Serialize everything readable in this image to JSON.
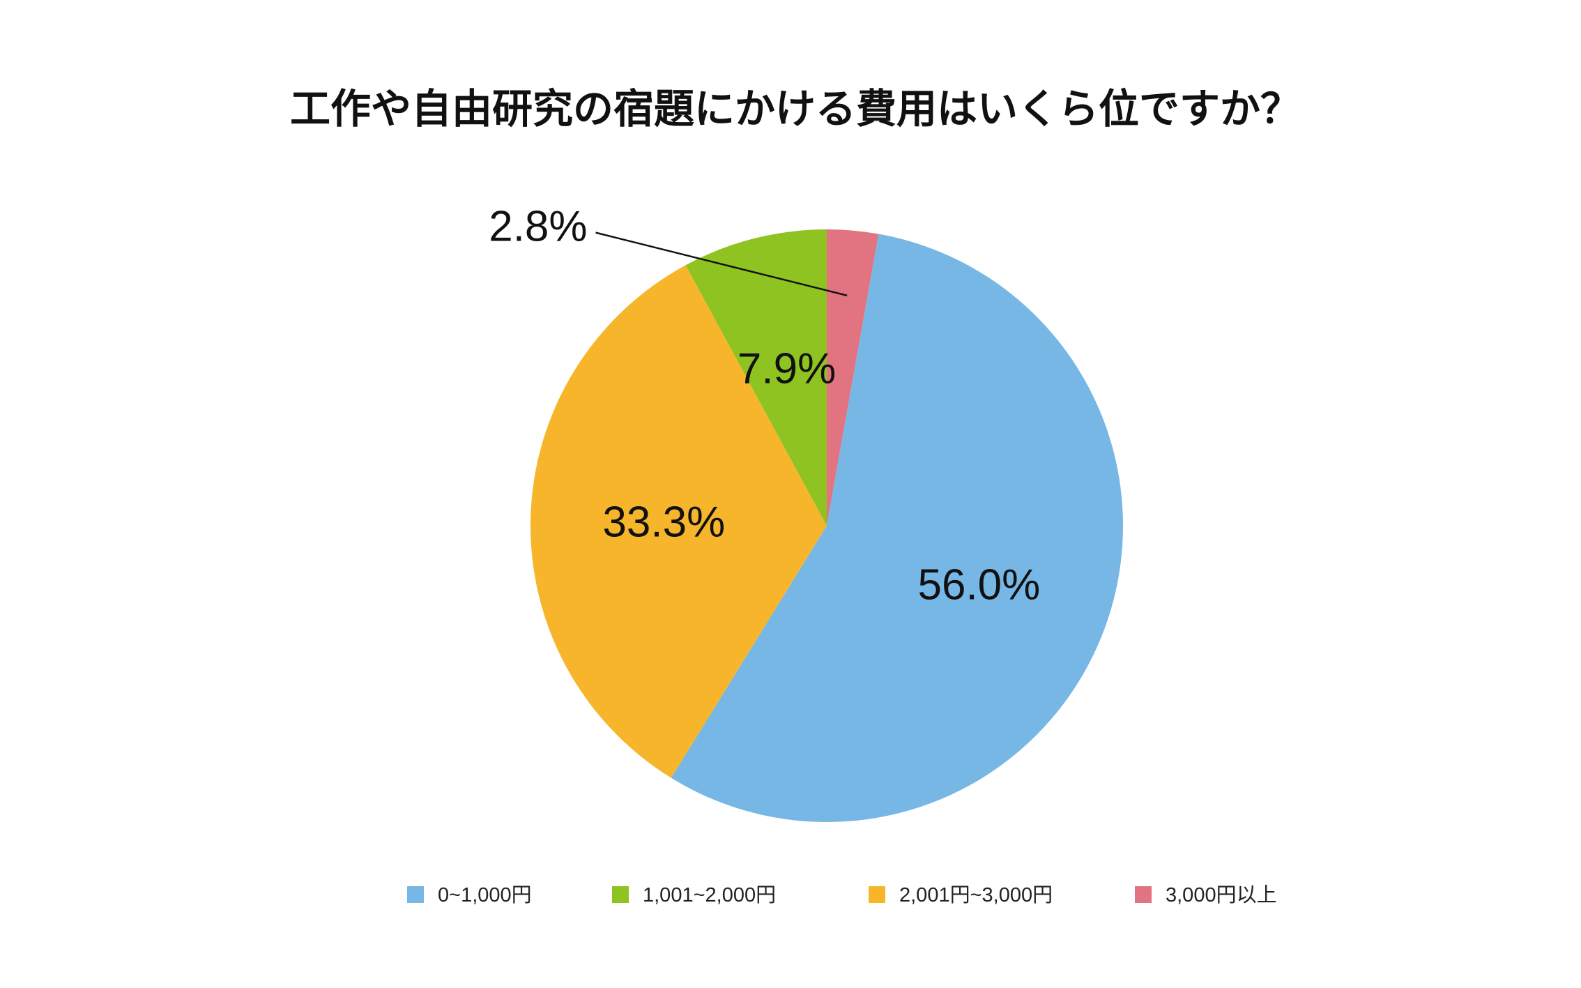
{
  "chart_data": {
    "type": "pie",
    "title": "工作や自由研究の宿題にかける費用はいくら位ですか？",
    "categories": [
      "0~1,000円",
      "1,001~2,000円",
      "2,001円~3,000円",
      "3,000円以上"
    ],
    "values": [
      56.0,
      7.9,
      33.3,
      2.8
    ],
    "data_labels": [
      "56.0%",
      "7.9%",
      "33.3%",
      "2.8%"
    ],
    "colors": [
      "#77b7e5",
      "#8ec322",
      "#f7b52c",
      "#e27380"
    ],
    "slice_order": [
      "3,000円以上",
      "0~1,000円",
      "2,001円~3,000円",
      "1,001~2,000円"
    ],
    "start_angle_deg": 0,
    "direction": "clockwise",
    "legend_position": "bottom"
  }
}
